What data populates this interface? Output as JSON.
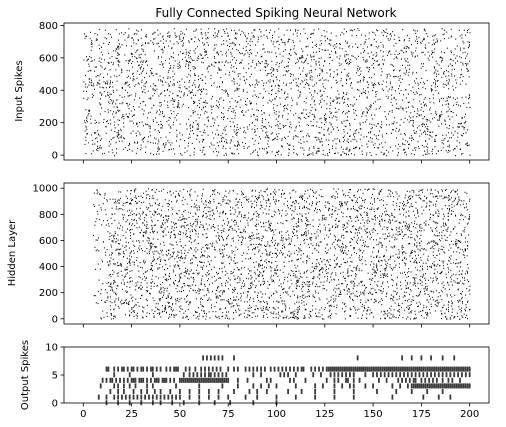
{
  "figure_title": "Fully Connected Spiking Neural Network",
  "chart_data": [
    {
      "type": "scatter",
      "subtype": "raster",
      "title": "Fully Connected Spiking Neural Network",
      "ylabel": "Input Spikes",
      "xlabel": "",
      "xlim": [
        -10,
        210
      ],
      "ylim": [
        -30,
        815
      ],
      "xticks": [
        0,
        25,
        50,
        75,
        100,
        125,
        150,
        175,
        200
      ],
      "xtick_labels_visible": false,
      "yticks": [
        0,
        200,
        400,
        600,
        800
      ],
      "ytick_labels": [
        "0",
        "200",
        "400",
        "600",
        "800"
      ],
      "x_range": [
        0,
        200
      ],
      "neuron_count": 784,
      "color": "#000000",
      "grid": false
    },
    {
      "type": "scatter",
      "subtype": "raster",
      "title": "",
      "ylabel": "Hidden Layer",
      "xlabel": "",
      "xlim": [
        -10,
        210
      ],
      "ylim": [
        -40,
        1040
      ],
      "xticks": [
        0,
        25,
        50,
        75,
        100,
        125,
        150,
        175,
        200
      ],
      "xtick_labels_visible": false,
      "yticks": [
        0,
        200,
        400,
        600,
        800,
        1000
      ],
      "ytick_labels": [
        "0",
        "200",
        "400",
        "600",
        "800",
        "1000"
      ],
      "x_range": [
        5,
        200
      ],
      "neuron_count": 1000,
      "color": "#000000",
      "grid": false
    },
    {
      "type": "scatter",
      "subtype": "raster",
      "title": "",
      "ylabel": "Output Spikes",
      "xlabel": "",
      "xlim": [
        -10,
        210
      ],
      "ylim": [
        0,
        10
      ],
      "xticks": [
        0,
        25,
        50,
        75,
        100,
        125,
        150,
        175,
        200
      ],
      "xtick_labels": [
        "0",
        "25",
        "50",
        "75",
        "100",
        "125",
        "150",
        "175",
        "200"
      ],
      "xtick_labels_visible": true,
      "yticks": [
        0,
        5,
        10
      ],
      "ytick_labels": [
        "0",
        "5",
        "10"
      ],
      "color": "#3a3a3a",
      "grid": false,
      "neurons": [
        {
          "y": 8,
          "x": [
            62,
            64,
            66,
            68,
            70,
            72,
            78,
            142,
            165,
            170,
            175,
            180,
            186,
            192
          ]
        },
        {
          "y": 6,
          "x": [
            12,
            13,
            16,
            18,
            20,
            21,
            23,
            25,
            26,
            28,
            30,
            31,
            33,
            35,
            36,
            38,
            40,
            43,
            45,
            47,
            48,
            49,
            53,
            55,
            58,
            61,
            63,
            65,
            67,
            69,
            71,
            75,
            78,
            80,
            84,
            86,
            88,
            90,
            92,
            94,
            97,
            99,
            101,
            103,
            105,
            107,
            109,
            111,
            113,
            114,
            118,
            120,
            122,
            124,
            126,
            127,
            128,
            129,
            130,
            131,
            132,
            133,
            134,
            135,
            136,
            137,
            138,
            139,
            140,
            141,
            142,
            143,
            144,
            145,
            146,
            147,
            148,
            149,
            150,
            151,
            152,
            153,
            154,
            155,
            156,
            157,
            158,
            159,
            160,
            161,
            162,
            163,
            164,
            165,
            166,
            167,
            168,
            169,
            170,
            171,
            172,
            173,
            174,
            175,
            176,
            177,
            178,
            179,
            180,
            181,
            182,
            183,
            184,
            185,
            186,
            187,
            188,
            189,
            190,
            191,
            192,
            193,
            194,
            195,
            196,
            197,
            198,
            199,
            200
          ]
        },
        {
          "y": 5,
          "x": [
            16,
            24,
            36,
            52,
            55,
            57,
            59,
            61,
            63,
            65,
            66,
            68,
            70,
            72,
            74,
            88,
            92,
            102,
            104,
            106,
            110,
            119,
            123,
            128,
            130,
            132,
            134,
            136,
            138,
            140,
            146,
            150,
            152,
            154,
            156,
            158,
            160,
            162,
            164,
            166,
            168,
            170,
            172,
            174,
            176,
            178,
            180,
            182,
            184,
            186,
            188,
            190,
            192,
            194,
            196,
            198,
            200
          ]
        },
        {
          "y": 4,
          "x": [
            10,
            12,
            14,
            15,
            17,
            19,
            21,
            23,
            25,
            26,
            27,
            29,
            30,
            31,
            33,
            35,
            37,
            38,
            39,
            41,
            42,
            43,
            45,
            47,
            50,
            51,
            52,
            53,
            54,
            55,
            56,
            57,
            58,
            59,
            60,
            61,
            62,
            63,
            64,
            65,
            66,
            67,
            68,
            69,
            70,
            71,
            72,
            73,
            74,
            75,
            80,
            85,
            95,
            97,
            107,
            109,
            115,
            126,
            130,
            132,
            136,
            137,
            140,
            143,
            153,
            157,
            163,
            165,
            167,
            169,
            171,
            172,
            175,
            177,
            179,
            181,
            183,
            186,
            189,
            191,
            195
          ]
        },
        {
          "y": 3,
          "x": [
            9,
            16,
            18,
            21,
            24,
            27,
            33,
            36,
            48,
            60,
            72,
            80,
            88,
            92,
            96,
            100,
            110,
            120,
            124,
            130,
            134,
            138,
            140,
            146,
            150,
            160,
            164,
            168,
            170,
            171,
            172,
            173,
            174,
            175,
            176,
            177,
            178,
            179,
            180,
            181,
            182,
            183,
            184,
            185,
            186,
            187,
            188,
            189,
            190,
            191,
            192,
            193,
            194,
            195,
            196,
            197,
            198,
            199,
            200
          ]
        },
        {
          "y": 2,
          "x": [
            14,
            18,
            21,
            26,
            30,
            33,
            37,
            40,
            45,
            50,
            55,
            60,
            65,
            70,
            78,
            86,
            90,
            95,
            106,
            113,
            120,
            130,
            140,
            152,
            162,
            170,
            178,
            186
          ]
        },
        {
          "y": 1,
          "x": [
            8,
            12,
            16,
            18,
            20,
            22,
            24,
            26,
            28,
            30,
            32,
            34,
            36,
            38,
            40,
            42,
            44,
            46,
            48,
            50,
            55,
            60,
            65,
            70,
            75,
            84,
            90,
            100,
            110,
            120,
            130,
            140,
            160,
            176,
            184,
            190
          ]
        },
        {
          "y": 0,
          "x": [
            12,
            18,
            24,
            30,
            36,
            40,
            46,
            52,
            60,
            68,
            76,
            88,
            100
          ]
        }
      ]
    }
  ]
}
